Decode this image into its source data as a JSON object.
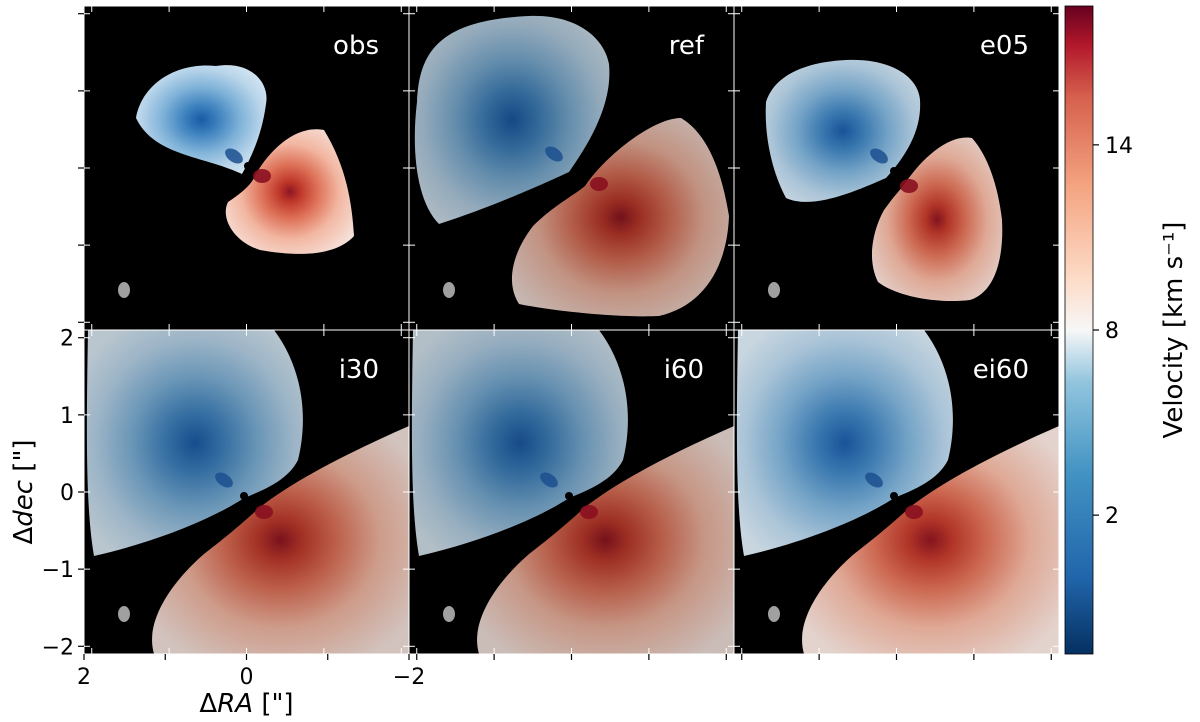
{
  "chart_data": {
    "type": "heatmap",
    "description_kind": "velocity moment maps, 2x3 panel grid",
    "panels": [
      {
        "label": "obs",
        "shape": "compact",
        "dark": 1.0
      },
      {
        "label": "ref",
        "shape": "wide",
        "dark": 0.8
      },
      {
        "label": "e05",
        "shape": "medium",
        "dark": 0.92
      },
      {
        "label": "i30",
        "shape": "full",
        "dark": 0.85
      },
      {
        "label": "i60",
        "shape": "full",
        "dark": 0.82
      },
      {
        "label": "ei60",
        "shape": "full",
        "dark": 0.92
      }
    ],
    "x_axis": {
      "label_prefix": "Δ",
      "label_var": "RA",
      "label_unit": " [\"]",
      "range": [
        2,
        -2
      ],
      "ticks": [
        2,
        1,
        0,
        -1,
        -2
      ],
      "tick_labels": [
        "2",
        "",
        "0",
        "",
        "−2"
      ]
    },
    "y_axis": {
      "label_prefix": "Δ",
      "label_var": "dec",
      "label_unit": " [\"]",
      "range": [
        -2.1,
        2.1
      ],
      "ticks": [
        2,
        1,
        0,
        -1,
        -2
      ],
      "tick_labels": [
        "2",
        "1",
        "0",
        "−1",
        "−2"
      ]
    },
    "colorbar": {
      "label": "Velocity [km s⁻¹]",
      "range": [
        -2.5,
        18.5
      ],
      "ticks": [
        2,
        8,
        14
      ],
      "tick_labels": [
        "2",
        "8",
        "14"
      ],
      "colormap": "RdBu_r",
      "center": 7.8
    },
    "beam_color": "#a0a0a0",
    "background_color": "#000000"
  }
}
